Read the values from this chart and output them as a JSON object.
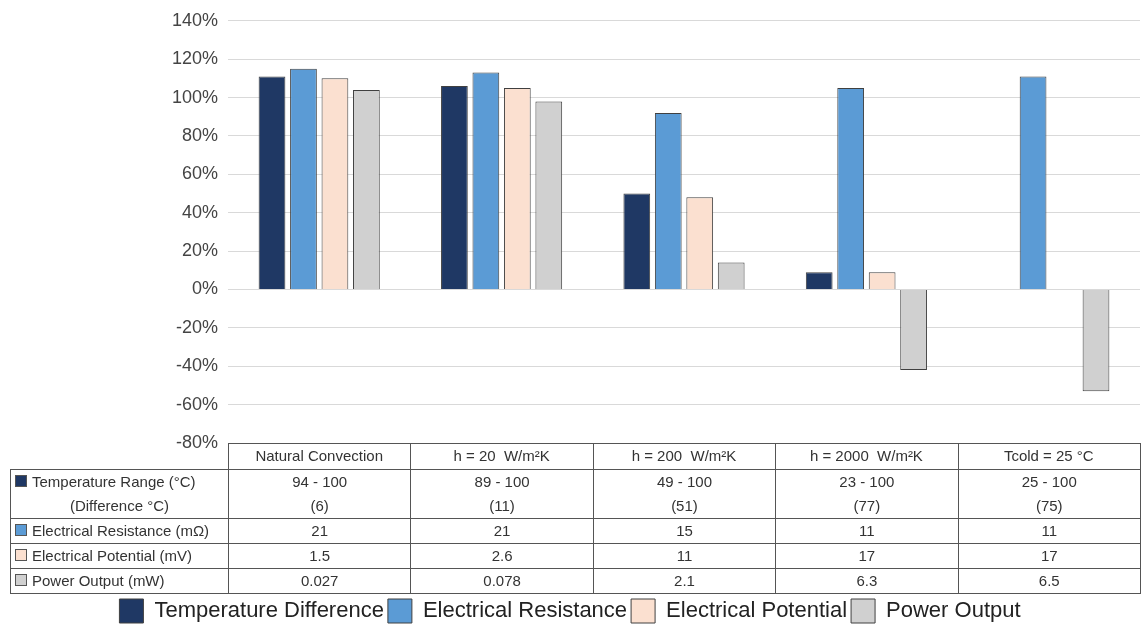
{
  "chart_data": [
    {
      "type": "bar",
      "categories": [
        "Natural Convection",
        "h = 20  W/m²K",
        "h = 200  W/m²K",
        "h = 2000  W/m²K",
        "Tcold = 25 °C"
      ],
      "series": [
        {
          "name": "Temperature Difference",
          "color": "#1f3864",
          "values": [
            111,
            106,
            50,
            9,
            null
          ]
        },
        {
          "name": "Electrical Resistance",
          "color": "#5b9bd5",
          "values": [
            115,
            113,
            92,
            105,
            111
          ]
        },
        {
          "name": "Electrical Potential",
          "color": "#fbe0d0",
          "values": [
            110,
            105,
            48,
            9,
            null
          ]
        },
        {
          "name": "Power Output",
          "color": "#d0d0d0",
          "values": [
            104,
            98,
            14,
            -42,
            -53
          ]
        }
      ],
      "ylim": [
        -80,
        140
      ],
      "yticks": [
        {
          "value": -80,
          "label": "-80%"
        },
        {
          "value": -60,
          "label": "-60%"
        },
        {
          "value": -40,
          "label": "-40%"
        },
        {
          "value": -20,
          "label": "-20%"
        },
        {
          "value": 0,
          "label": "0%"
        },
        {
          "value": 20,
          "label": "20%"
        },
        {
          "value": 40,
          "label": "40%"
        },
        {
          "value": 60,
          "label": "60%"
        },
        {
          "value": 80,
          "label": "80%"
        },
        {
          "value": 100,
          "label": "100%"
        },
        {
          "value": 120,
          "label": "120%"
        },
        {
          "value": 140,
          "label": "140%"
        }
      ],
      "grid": "y",
      "legend": "bottom"
    },
    {
      "type": "other",
      "y_categories": [
        "Temperature Range (°C)\n(Difference °C)",
        "Electrical Resistance (mΩ)",
        "Electrical Potential (mV)",
        "Power Output (mW)"
      ],
      "cell_labels": [
        [
          "94 - 100\n(6)",
          "89 - 100\n(11)",
          "49 - 100\n(51)",
          "23 - 100\n(77)",
          "25 - 100\n(75)"
        ],
        [
          "21",
          "21",
          "15",
          "11",
          "11"
        ],
        [
          "1.5",
          "2.6",
          "11",
          "17",
          "17"
        ],
        [
          "0.027",
          "0.078",
          "2.1",
          "6.3",
          "6.5"
        ]
      ]
    }
  ]
}
